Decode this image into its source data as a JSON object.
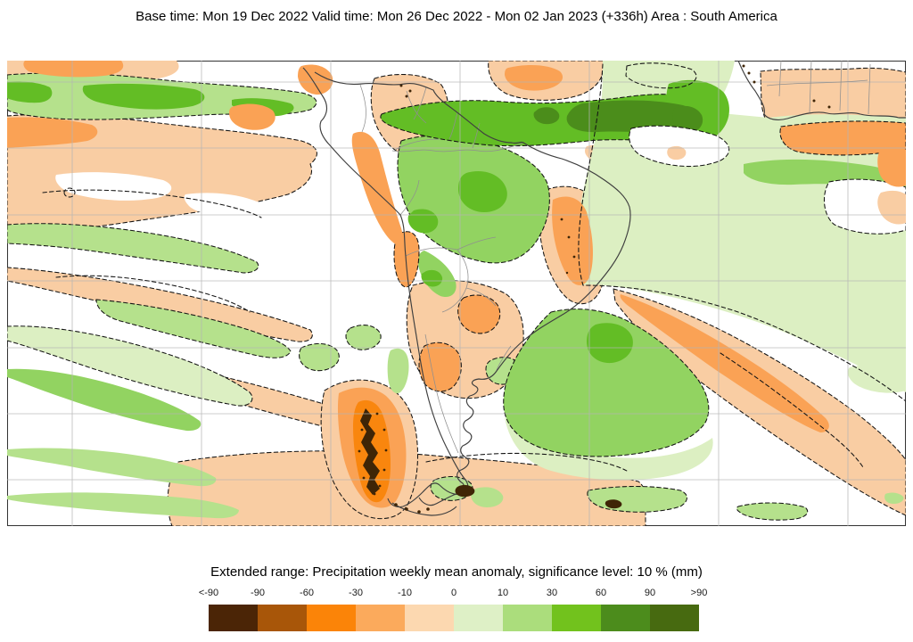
{
  "header": {
    "title": "Base time: Mon 19 Dec 2022 Valid time: Mon 26 Dec 2022 - Mon 02 Jan 2023 (+336h) Area : South America"
  },
  "legend": {
    "caption": "Extended range: Precipitation weekly mean anomaly, significance level: 10 % (mm)",
    "tick_labels": [
      "<-90",
      "-90",
      "-60",
      "-30",
      "-10",
      "0",
      "10",
      "30",
      "60",
      "90",
      ">90"
    ],
    "colors": [
      "#4b2506",
      "#a85609",
      "#fb8408",
      "#fbaa5c",
      "#fcd8b0",
      "#def0c6",
      "#abdd7c",
      "#72c21d",
      "#4c8c1c",
      "#476a10"
    ],
    "units": "mm",
    "significance_level": "10 %"
  },
  "map": {
    "area": "South America",
    "variable": "Precipitation weekly mean anomaly",
    "anomaly_regions": [
      {
        "location": "central Amazon basin",
        "sign": "positive",
        "range_mm": "10 to 60"
      },
      {
        "location": "equatorial Atlantic off Guianas / NE Brazil",
        "sign": "positive",
        "range_mm": "30 to >90"
      },
      {
        "location": "Gulf of Guinea waters",
        "sign": "positive",
        "range_mm": "10 to 60"
      },
      {
        "location": "South Atlantic east of Uruguay",
        "sign": "positive",
        "range_mm": "10 to 30"
      },
      {
        "location": "Sahel / West Africa coast",
        "sign": "negative",
        "range_mm": "-10 to -30"
      },
      {
        "location": "Venezuela, Colombian Andes and coastal Peru",
        "sign": "negative",
        "range_mm": "-10 to -30"
      },
      {
        "location": "eastern tropical Pacific bands",
        "sign": "negative",
        "range_mm": "0 to -30"
      },
      {
        "location": "NE Brazil interior",
        "sign": "negative",
        "range_mm": "-10 to -60"
      },
      {
        "location": "NW Argentina / Chaco",
        "sign": "negative",
        "range_mm": "-10 to -30"
      },
      {
        "location": "southern Chile Andes (Patagonia)",
        "sign": "negative",
        "range_mm": "-30 to <-90"
      },
      {
        "location": "SW Atlantic diagonal band toward mid-ocean",
        "sign": "negative",
        "range_mm": "-10 to -30"
      },
      {
        "location": "SE Pacific mid-latitude bands",
        "sign": "positive",
        "range_mm": "0 to 30"
      }
    ]
  },
  "palette": {
    "paleOrange": "#f9cda3",
    "midOrange": "#faa255",
    "strongOrange": "#f9860e",
    "darkBrown": "#3f2506",
    "paleGreen": "#dcefc2",
    "lightGreen": "#b5e18c",
    "midGreen": "#92d361",
    "brightGreen": "#63bd25",
    "darkGreen": "#4b8d1b",
    "oliveGreen": "#44700f",
    "grid": "#b5b5b5",
    "coast": "#3f3f3f",
    "border": "#8f8f8f",
    "dashed": "#141414",
    "frame": "#333333"
  }
}
